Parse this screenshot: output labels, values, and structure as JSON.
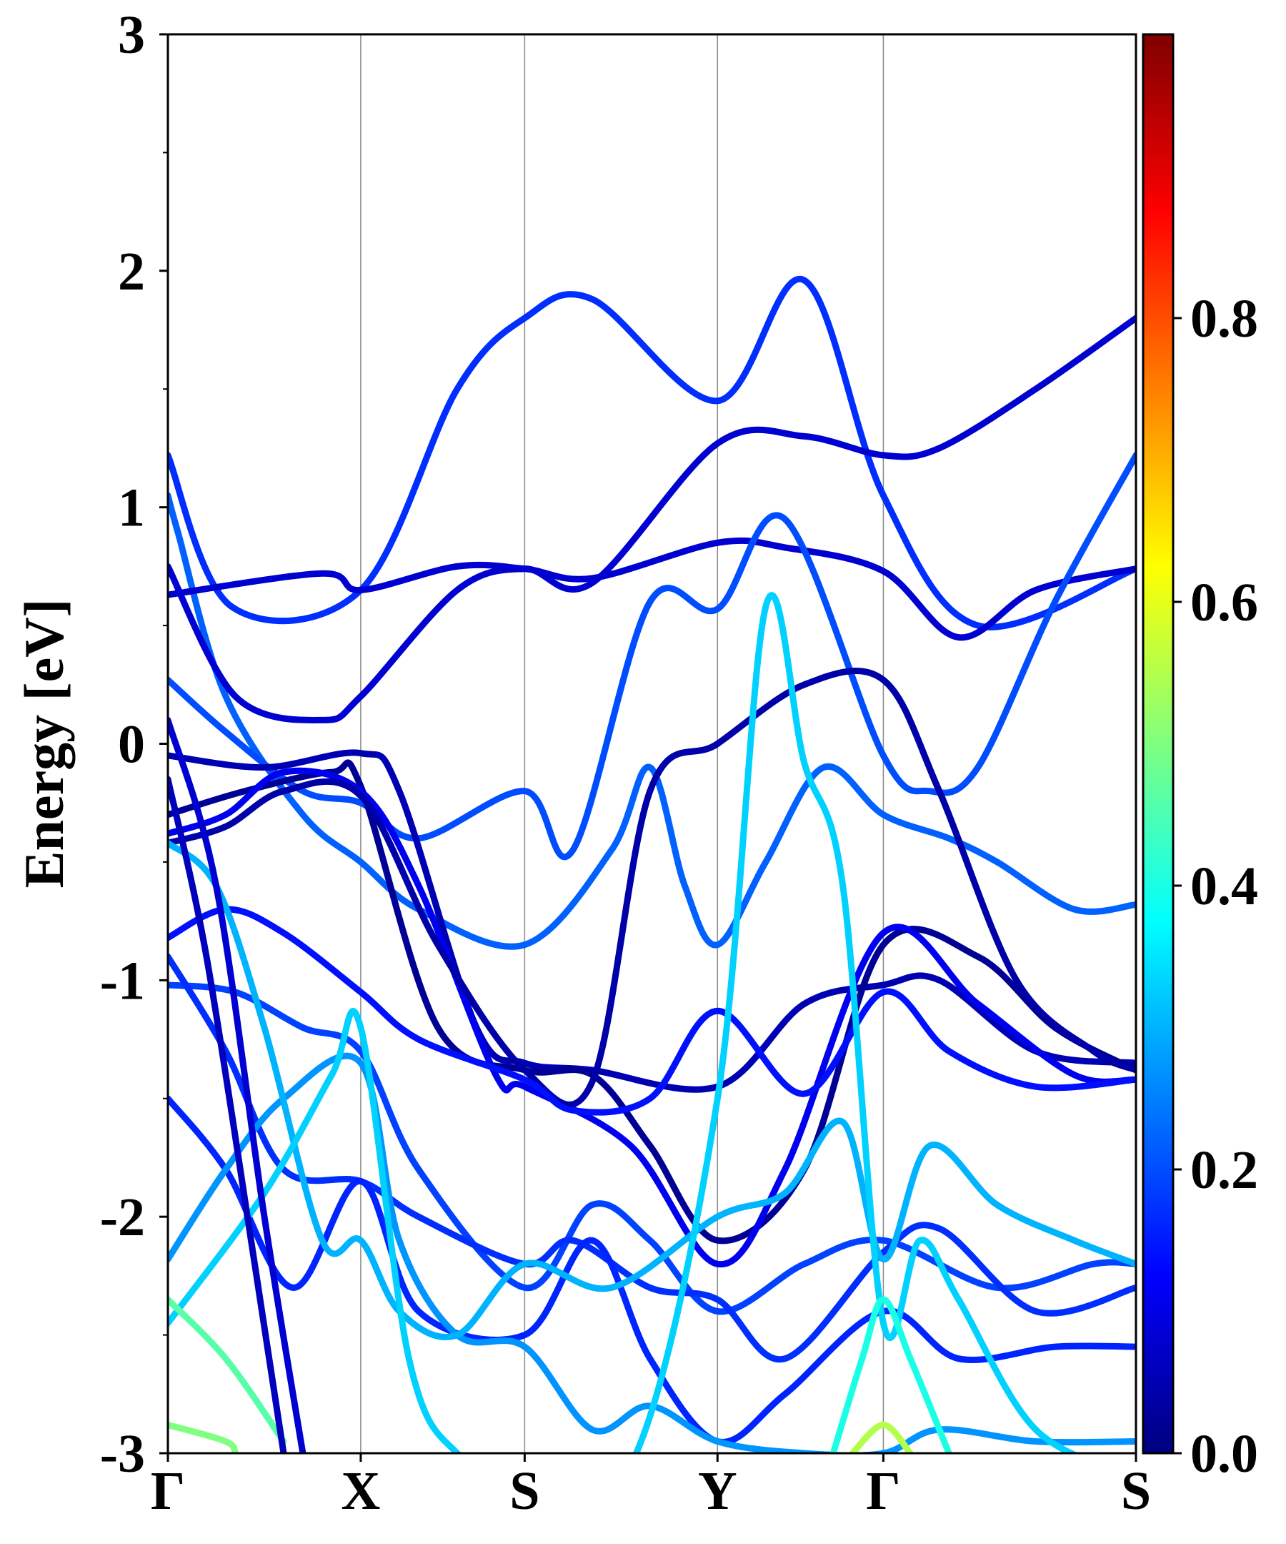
{
  "chart_data": {
    "type": "line",
    "title": "",
    "ylabel": "Energy [eV]",
    "xlabel": "",
    "ylim": [
      -3,
      3
    ],
    "y_ticks": [
      {
        "value": -3,
        "label": "-3"
      },
      {
        "value": -2,
        "label": "-2"
      },
      {
        "value": -1,
        "label": "-1"
      },
      {
        "value": 0,
        "label": "0"
      },
      {
        "value": 1,
        "label": "1"
      },
      {
        "value": 2,
        "label": "2"
      },
      {
        "value": 3,
        "label": "3"
      }
    ],
    "y_minor_step": 0.5,
    "kpath": [
      {
        "label": "Γ",
        "x": 0
      },
      {
        "label": "X",
        "x": 1
      },
      {
        "label": "S",
        "x": 1.85
      },
      {
        "label": "Y",
        "x": 2.85
      },
      {
        "label": "Γ",
        "x": 3.71
      },
      {
        "label": "S",
        "x": 5.02
      }
    ],
    "xlim": [
      0,
      5.02
    ],
    "grid": "vertical lines at high-symmetry points",
    "colorbar": {
      "colormap": "jet",
      "range": [
        0,
        1
      ],
      "ticks": [
        {
          "value": 0.0,
          "label": "0.0"
        },
        {
          "value": 0.2,
          "label": "0.2"
        },
        {
          "value": 0.4,
          "label": "0.4"
        },
        {
          "value": 0.6,
          "label": "0.6"
        },
        {
          "value": 0.8,
          "label": "0.8"
        }
      ]
    },
    "series": [
      {
        "weight": 0.17,
        "x": [
          0,
          0.33,
          1,
          1.5,
          1.85,
          2.2,
          2.85,
          3.3,
          3.71,
          4.2,
          5.02
        ],
        "y": [
          1.22,
          0.58,
          0.65,
          1.5,
          1.8,
          1.88,
          1.45,
          1.96,
          1.05,
          0.5,
          0.74
        ]
      },
      {
        "weight": 0.22,
        "x": [
          0,
          0.05,
          0.3,
          0.7,
          1,
          1.3,
          1.85,
          2.3,
          2.5,
          2.68,
          2.85,
          3.1,
          3.4,
          3.71,
          4.05,
          4.3,
          4.7,
          5.02
        ],
        "y": [
          1.05,
          0.9,
          0.2,
          -0.3,
          -0.5,
          -0.7,
          -0.85,
          -0.45,
          -0.1,
          -0.6,
          -0.85,
          -0.5,
          -0.1,
          -0.3,
          -0.4,
          -0.5,
          -0.7,
          -0.68
        ]
      },
      {
        "weight": 0.08,
        "x": [
          0,
          0.35,
          0.8,
          1,
          1.5,
          1.85,
          2.2,
          2.85,
          3.3,
          3.71,
          4,
          4.5,
          5.02
        ],
        "y": [
          0.75,
          0.2,
          0.1,
          0.2,
          0.65,
          0.74,
          0.68,
          1.27,
          1.3,
          1.22,
          1.25,
          1.5,
          1.8
        ]
      },
      {
        "weight": 0.08,
        "x": [
          0,
          0.8,
          1,
          1.5,
          1.85,
          2.2,
          2.85,
          3.2,
          3.71,
          4.1,
          4.5,
          5.02
        ],
        "y": [
          0.63,
          0.72,
          0.65,
          0.75,
          0.74,
          0.7,
          0.85,
          0.83,
          0.73,
          0.45,
          0.65,
          0.74
        ]
      },
      {
        "weight": 0.2,
        "x": [
          0,
          0.3,
          0.7,
          1,
          1.3,
          1.85,
          2.1,
          2.5,
          2.85,
          3.2,
          3.71,
          3.95,
          4.2,
          4.6,
          5.02
        ],
        "y": [
          0.27,
          0.05,
          -0.2,
          -0.25,
          -0.4,
          -0.2,
          -0.45,
          0.6,
          0.57,
          0.95,
          -0.05,
          -0.2,
          -0.1,
          0.6,
          1.22
        ]
      },
      {
        "weight": 0.05,
        "x": [
          0,
          0.5,
          1,
          1.2,
          1.6,
          1.85,
          2.2,
          2.85,
          3.3,
          3.71,
          4,
          4.5,
          5.02
        ],
        "y": [
          -0.05,
          -0.1,
          -0.04,
          -0.2,
          -1.2,
          -1.35,
          -1.38,
          -1.45,
          -1.1,
          -1.02,
          -1.0,
          -1.3,
          -1.35
        ]
      },
      {
        "weight": 0.02,
        "x": [
          0,
          0.4,
          0.85,
          1,
          1.4,
          1.85,
          2.2,
          2.5,
          2.85,
          3.3,
          3.71,
          4.2,
          4.6,
          5.02
        ],
        "y": [
          -0.3,
          -0.2,
          -0.12,
          -0.18,
          -1.2,
          -1.38,
          -1.4,
          -1.7,
          -2.1,
          -1.8,
          -0.85,
          -0.9,
          -1.2,
          -1.38
        ]
      },
      {
        "weight": 0.11,
        "x": [
          0,
          0.3,
          0.6,
          1,
          1.3,
          1.7,
          1.85,
          2.4,
          2.85,
          3.2,
          3.71,
          4.2,
          4.7,
          5.02
        ],
        "y": [
          -0.38,
          -0.3,
          -0.12,
          -0.2,
          -0.6,
          -1.4,
          -1.45,
          -1.7,
          -2.2,
          -1.8,
          -0.8,
          -1.1,
          -1.4,
          -1.42
        ]
      },
      {
        "weight": 0.04,
        "x": [
          0,
          0.3,
          0.6,
          1,
          1.4,
          1.85,
          2.2,
          2.5,
          2.85,
          3.3,
          3.71,
          4.0,
          4.4,
          4.8,
          5.02
        ],
        "y": [
          -0.42,
          -0.35,
          -0.2,
          -0.22,
          -0.85,
          -1.38,
          -1.43,
          -0.2,
          0.0,
          0.25,
          0.27,
          -0.2,
          -1.0,
          -1.3,
          -1.38
        ]
      },
      {
        "weight": 0.14,
        "x": [
          0,
          0.3,
          0.6,
          1,
          1.3,
          1.85,
          2.1,
          2.5,
          2.85,
          3.3,
          3.71,
          4.05,
          4.5,
          5.02
        ],
        "y": [
          -0.82,
          -0.7,
          -0.8,
          -1.05,
          -1.25,
          -1.42,
          -1.55,
          -1.5,
          -1.13,
          -1.48,
          -1.05,
          -1.3,
          -1.45,
          -1.42
        ]
      },
      {
        "weight": 0.19,
        "x": [
          0,
          0.35,
          0.7,
          1,
          1.3,
          1.85,
          2.2,
          2.5,
          2.85,
          3.3,
          3.71,
          4.3,
          4.8,
          5.02
        ],
        "y": [
          -1.02,
          -1.05,
          -1.2,
          -1.3,
          -1.8,
          -2.3,
          -1.95,
          -2.1,
          -2.4,
          -2.2,
          -2.1,
          -2.3,
          -2.2,
          -2.2
        ]
      },
      {
        "weight": 0.17,
        "x": [
          0,
          0.3,
          0.6,
          1,
          1.3,
          1.85,
          2.1,
          2.5,
          2.85,
          3.2,
          3.71,
          4.0,
          4.5,
          5.02
        ],
        "y": [
          -0.9,
          -1.3,
          -1.8,
          -1.85,
          -2.0,
          -2.2,
          -2.1,
          -2.3,
          -2.35,
          -2.6,
          -2.15,
          -2.05,
          -2.4,
          -2.3
        ]
      },
      {
        "weight": 0.16,
        "x": [
          0,
          0.3,
          0.65,
          1,
          1.3,
          1.85,
          2.2,
          2.5,
          2.85,
          3.2,
          3.71,
          4.1,
          4.6,
          5.02
        ],
        "y": [
          -1.5,
          -1.8,
          -2.3,
          -1.85,
          -2.4,
          -2.5,
          -2.1,
          -2.6,
          -2.95,
          -2.75,
          -2.4,
          -2.6,
          -2.55,
          -2.55
        ]
      },
      {
        "weight": 0.27,
        "x": [
          0,
          0.3,
          0.6,
          1,
          1.2,
          1.5,
          1.85,
          2.2,
          2.5,
          2.85,
          3.3,
          3.71,
          4.0,
          4.5,
          5.02
        ],
        "y": [
          -2.18,
          -1.8,
          -1.5,
          -1.35,
          -2.1,
          -2.5,
          -2.55,
          -2.9,
          -2.8,
          -2.95,
          -3.0,
          -3.0,
          -2.9,
          -2.95,
          -2.95
        ]
      },
      {
        "weight": 0.3,
        "x": [
          0,
          0.25,
          0.5,
          0.8,
          1,
          1.2,
          1.5,
          1.85,
          2.3,
          2.85,
          3.2,
          3.5,
          3.71,
          3.95,
          4.3,
          4.7,
          5.02
        ],
        "y": [
          -0.42,
          -0.6,
          -1.2,
          -2.1,
          -2.1,
          -2.4,
          -2.5,
          -2.2,
          -2.3,
          -2.0,
          -1.9,
          -1.6,
          -2.18,
          -1.7,
          -1.95,
          -2.1,
          -2.2
        ]
      },
      {
        "weight": 0.33,
        "x": [
          0,
          0.5,
          0.85,
          1,
          1.25,
          1.5,
          1.85,
          2.4,
          2.85,
          3.1,
          3.3,
          3.5,
          3.71,
          3.9,
          4.1,
          4.5,
          5.02
        ],
        "y": [
          -2.45,
          -1.9,
          -1.4,
          -1.2,
          -2.6,
          -3.0,
          -3.1,
          -3.05,
          -1.5,
          0.58,
          -0.08,
          -0.6,
          -2.45,
          -2.1,
          -2.35,
          -2.9,
          -3.1
        ]
      },
      {
        "weight": 0.46,
        "x": [
          0,
          0.3,
          0.6
        ],
        "y": [
          -2.35,
          -2.6,
          -2.95
        ]
      },
      {
        "weight": 0.5,
        "x": [
          0,
          0.3,
          0.35
        ],
        "y": [
          -2.88,
          -2.95,
          -3.0
        ]
      },
      {
        "weight": 0.4,
        "x": [
          3.45,
          3.6,
          3.71,
          3.85,
          4.05
        ],
        "y": [
          -3.0,
          -2.6,
          -2.35,
          -2.6,
          -3.0
        ]
      },
      {
        "weight": 0.55,
        "x": [
          3.55,
          3.71,
          3.85
        ],
        "y": [
          -3.0,
          -2.88,
          -3.0
        ]
      },
      {
        "weight": 0.06,
        "x": [
          0,
          0.2,
          0.45,
          0.6
        ],
        "y": [
          -0.15,
          -0.9,
          -2.2,
          -3.0
        ]
      },
      {
        "weight": 0.08,
        "x": [
          0,
          0.25,
          0.5,
          0.7
        ],
        "y": [
          0.1,
          -0.6,
          -2.0,
          -3.0
        ]
      }
    ]
  }
}
